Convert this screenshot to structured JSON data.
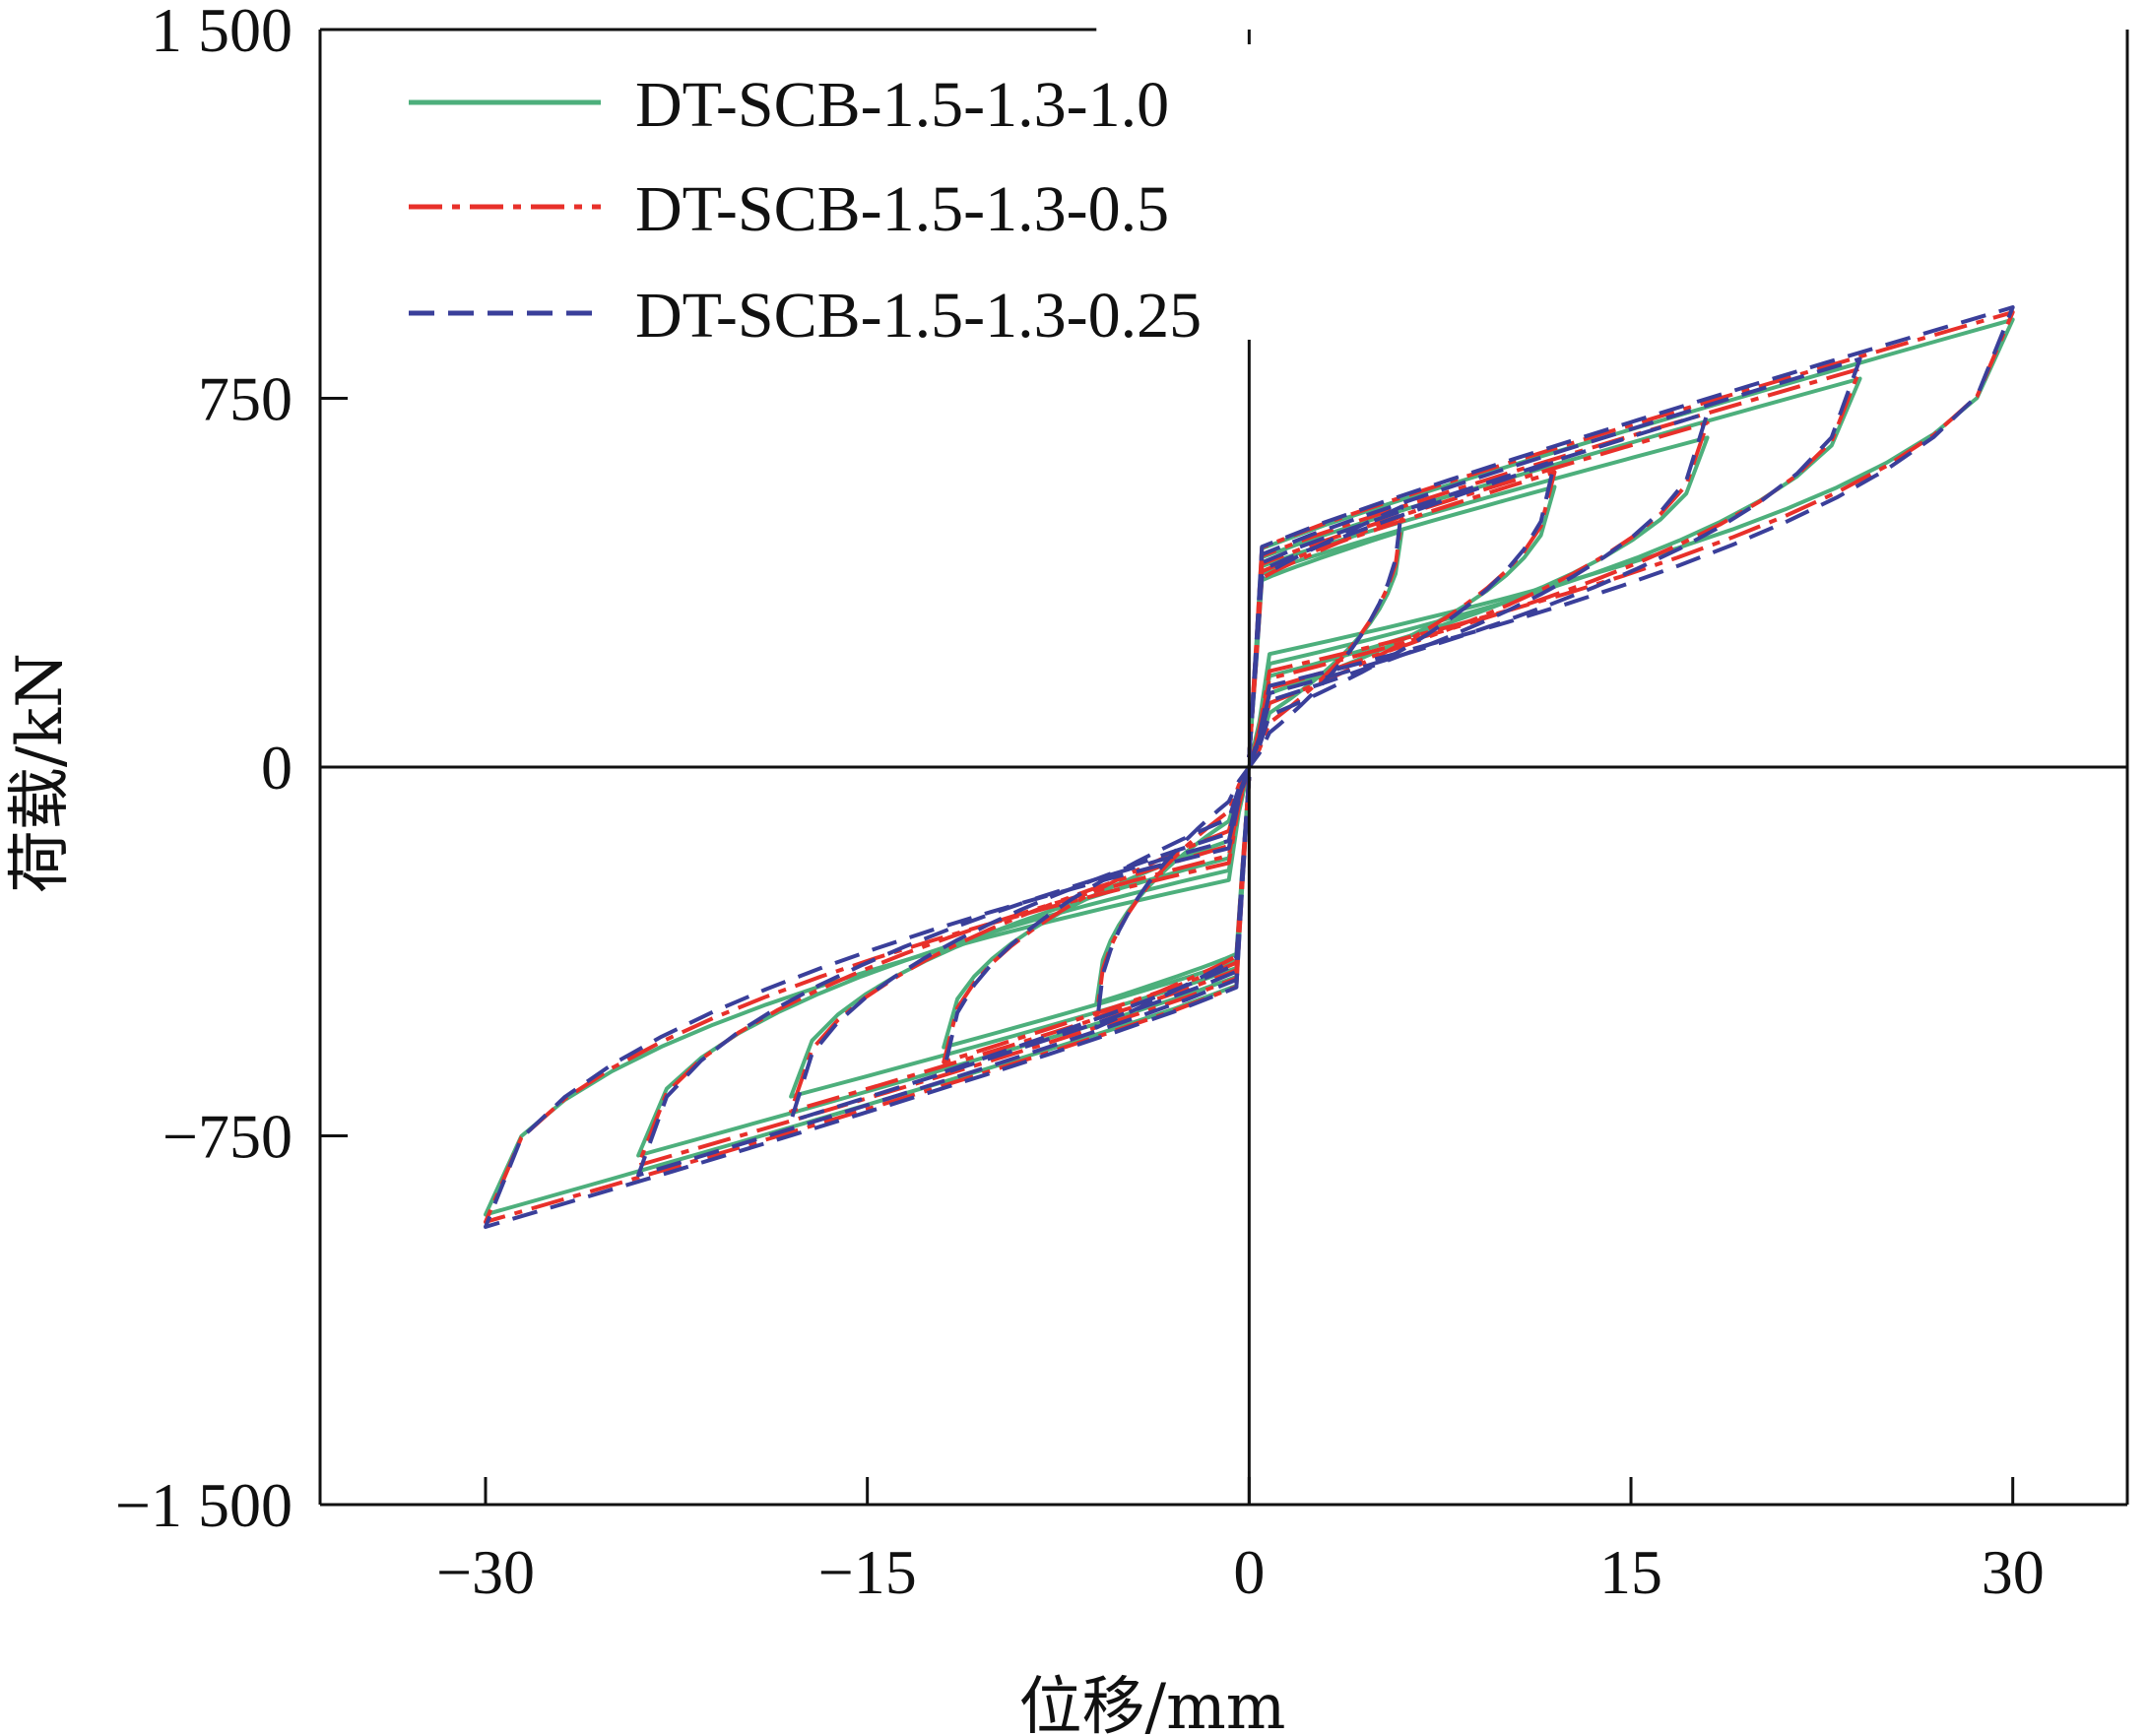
{
  "chart_data": {
    "type": "line",
    "xlabel": "位移/mm",
    "ylabel": "荷载/kN",
    "xlim": [
      -36.5,
      34.5
    ],
    "ylim": [
      -1500,
      1500
    ],
    "x_ticks": [
      -30,
      -15,
      0,
      15,
      30
    ],
    "y_ticks": [
      -1500,
      -750,
      0,
      750,
      1500
    ],
    "x_tick_labels": [
      "−30",
      "−15",
      "0",
      "15",
      "30"
    ],
    "y_tick_labels": [
      "−1 500",
      "−750",
      "0",
      "750",
      "1 500"
    ],
    "grid": false,
    "legend_position": "top-left",
    "series": [
      {
        "name": "DT-SCB-1.5-1.3-1.0",
        "color": "#4daf7c",
        "dash": "solid",
        "amplitudes": [
          6,
          12,
          18,
          24,
          30
        ],
        "peak_loads": [
          480,
          570,
          670,
          790,
          910
        ],
        "unload_zero_loads": [
          110,
          150,
          185,
          210,
          230
        ]
      },
      {
        "name": "DT-SCB-1.5-1.3-0.5",
        "color": "#e8302a",
        "dash": "dashdot",
        "amplitudes": [
          6,
          12,
          18,
          24,
          30
        ],
        "peak_loads": [
          510,
          600,
          700,
          810,
          925
        ],
        "unload_zero_loads": [
          90,
          130,
          160,
          180,
          195
        ]
      },
      {
        "name": "DT-SCB-1.5-1.3-0.25",
        "color": "#3a3f9a",
        "dash": "dashed",
        "amplitudes": [
          6,
          12,
          18,
          24,
          30
        ],
        "peak_loads": [
          530,
          620,
          720,
          830,
          935
        ],
        "unload_zero_loads": [
          70,
          105,
          135,
          150,
          165
        ]
      }
    ]
  }
}
